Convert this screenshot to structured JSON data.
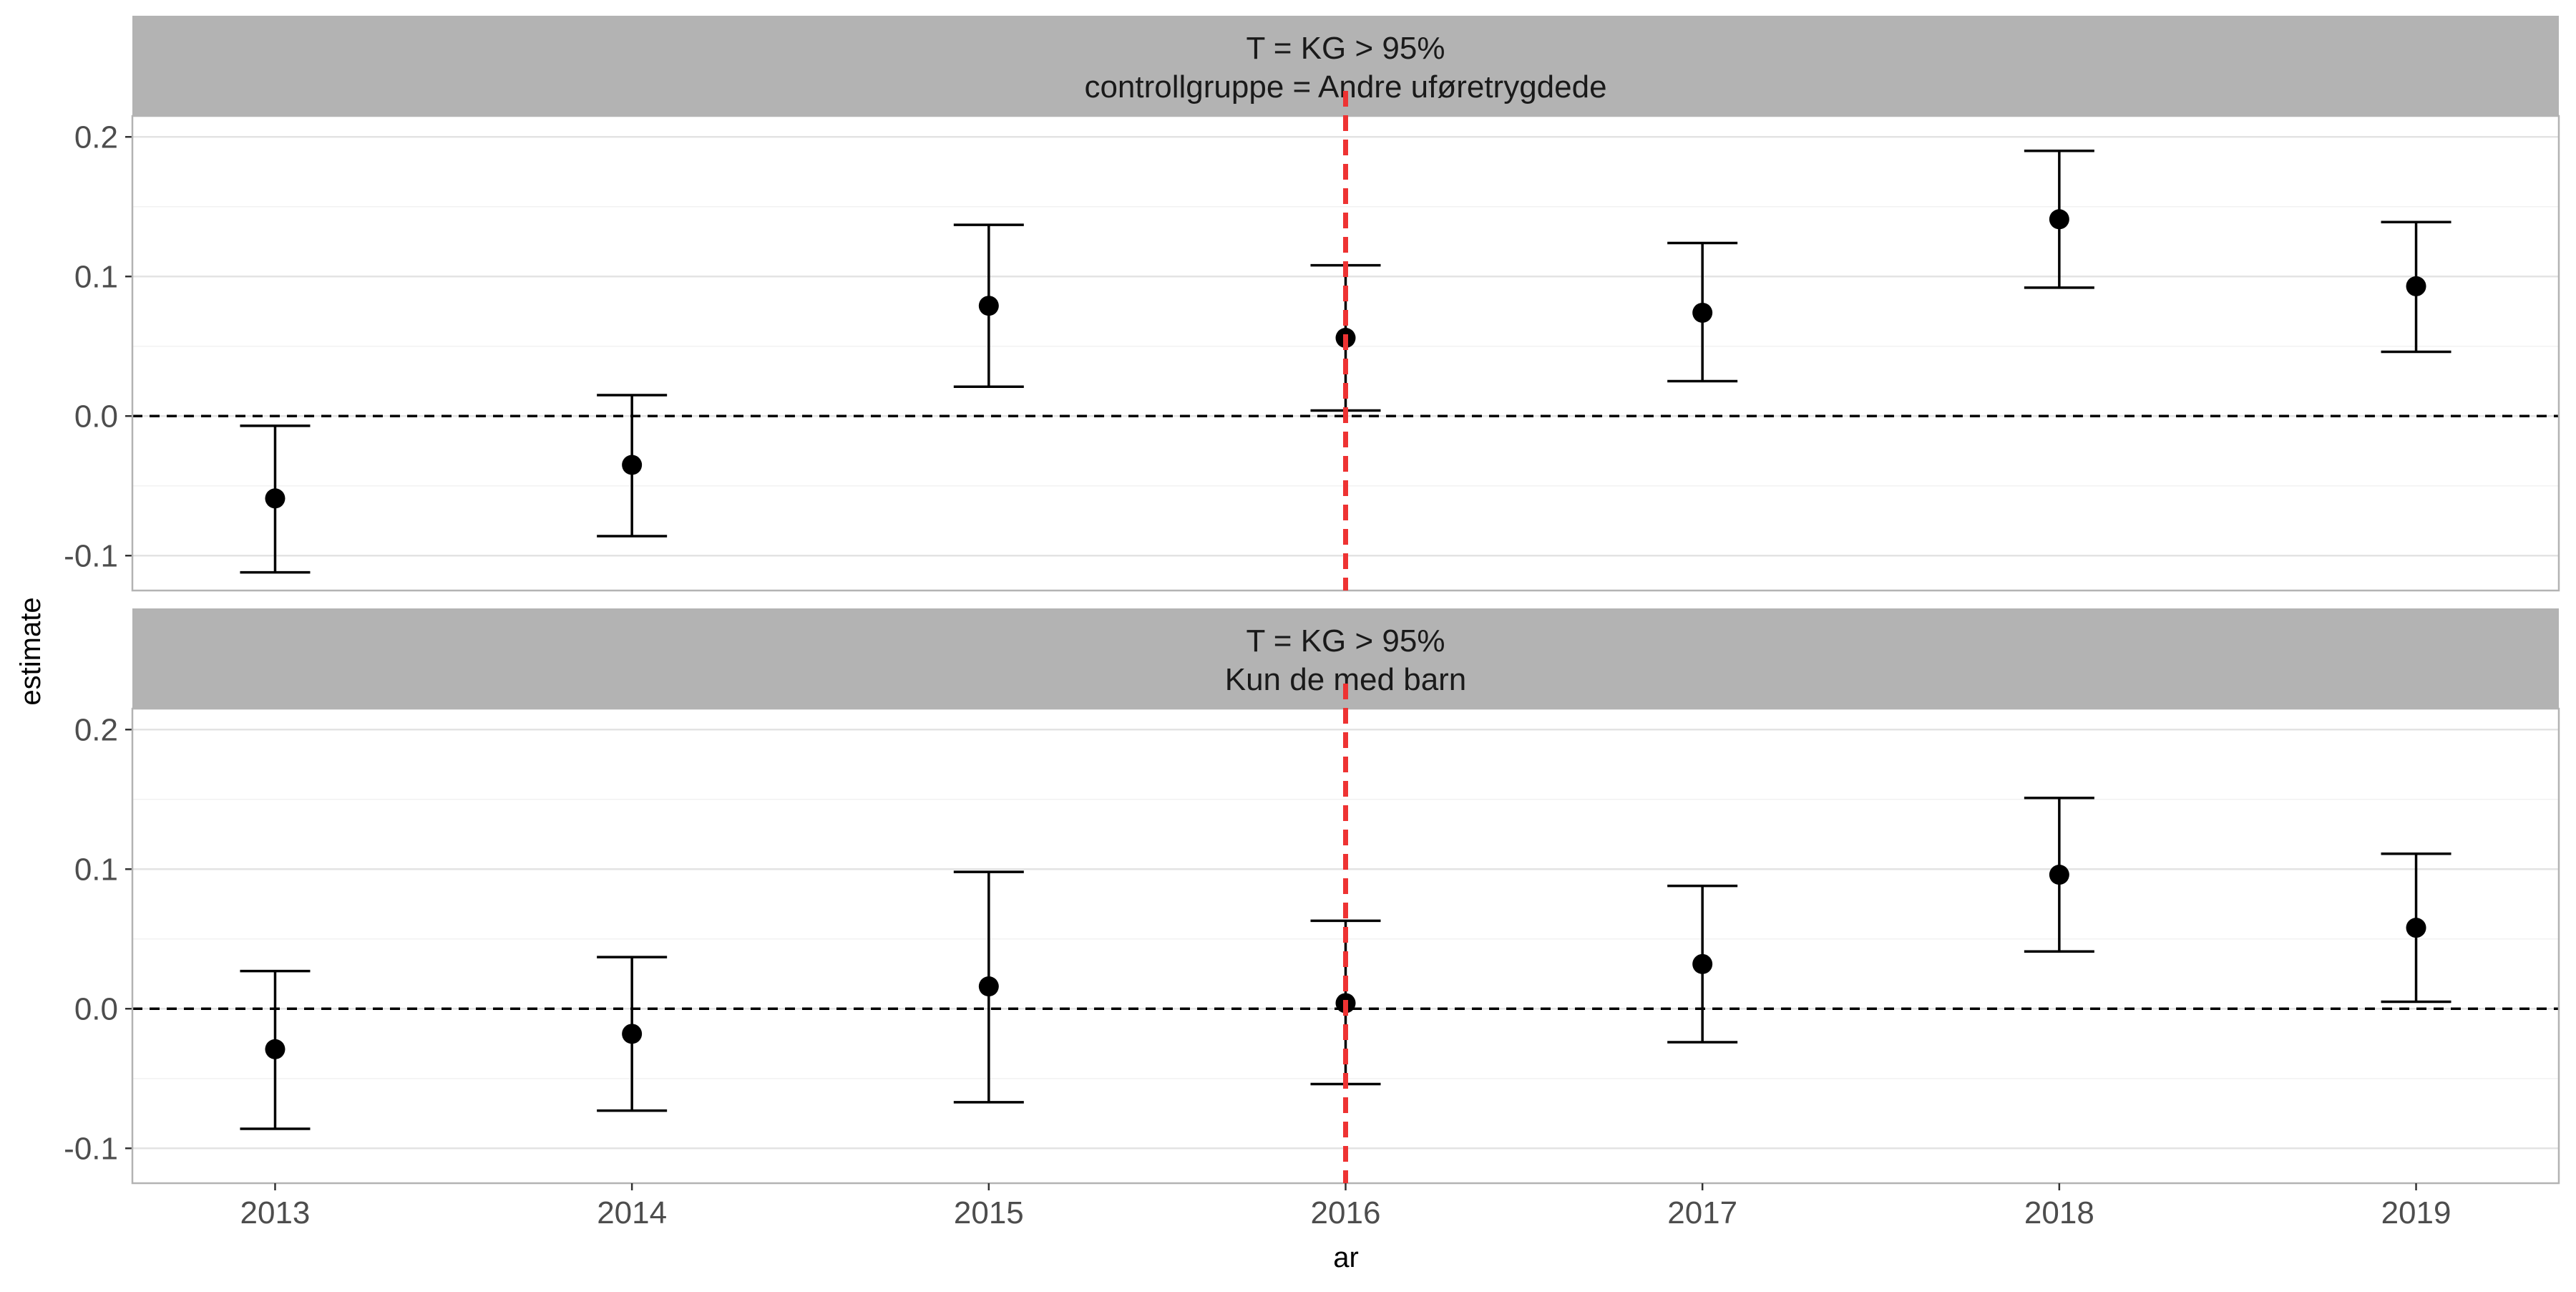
{
  "chart_data": {
    "type": "scatter",
    "subtype": "point-with-errorbars, faceted",
    "xlabel": "ar",
    "ylabel": "estimate",
    "x_ticks": [
      "2013",
      "2014",
      "2015",
      "2016",
      "2017",
      "2018",
      "2019"
    ],
    "y_ticks": [
      "-0.1",
      "0.0",
      "0.1",
      "0.2"
    ],
    "ylim": [
      -0.125,
      0.215
    ],
    "xlim": [
      2012.6,
      2019.4
    ],
    "grid": true,
    "reference_lines": {
      "hline_y": 0,
      "hline_style": "dashed black",
      "vline_x": 2016,
      "vline_style": "dashed",
      "vline_color": "#ee3333"
    },
    "colors": {
      "strip_background": "#b3b3b3",
      "point": "#000000",
      "grid_major": "#e3e3e3",
      "grid_minor": "#f2f2f2",
      "panel_border": "#b3b3b3"
    },
    "panels": [
      {
        "strip_line1": "T = KG > 95%",
        "strip_line2": "controllgruppe = Andre uføretrygdede",
        "points": [
          {
            "x": 2013,
            "estimate": -0.059,
            "lower": -0.112,
            "upper": -0.007
          },
          {
            "x": 2014,
            "estimate": -0.035,
            "lower": -0.086,
            "upper": 0.015
          },
          {
            "x": 2015,
            "estimate": 0.079,
            "lower": 0.021,
            "upper": 0.137
          },
          {
            "x": 2016,
            "estimate": 0.056,
            "lower": 0.004,
            "upper": 0.108
          },
          {
            "x": 2017,
            "estimate": 0.074,
            "lower": 0.025,
            "upper": 0.124
          },
          {
            "x": 2018,
            "estimate": 0.141,
            "lower": 0.092,
            "upper": 0.19
          },
          {
            "x": 2019,
            "estimate": 0.093,
            "lower": 0.046,
            "upper": 0.139
          }
        ]
      },
      {
        "strip_line1": "T = KG > 95%",
        "strip_line2": "Kun de med barn",
        "points": [
          {
            "x": 2013,
            "estimate": -0.029,
            "lower": -0.086,
            "upper": 0.027
          },
          {
            "x": 2014,
            "estimate": -0.018,
            "lower": -0.073,
            "upper": 0.037
          },
          {
            "x": 2015,
            "estimate": 0.016,
            "lower": -0.067,
            "upper": 0.098
          },
          {
            "x": 2016,
            "estimate": 0.004,
            "lower": -0.054,
            "upper": 0.063
          },
          {
            "x": 2017,
            "estimate": 0.032,
            "lower": -0.024,
            "upper": 0.088
          },
          {
            "x": 2018,
            "estimate": 0.096,
            "lower": 0.041,
            "upper": 0.151
          },
          {
            "x": 2019,
            "estimate": 0.058,
            "lower": 0.005,
            "upper": 0.111
          }
        ]
      }
    ]
  }
}
